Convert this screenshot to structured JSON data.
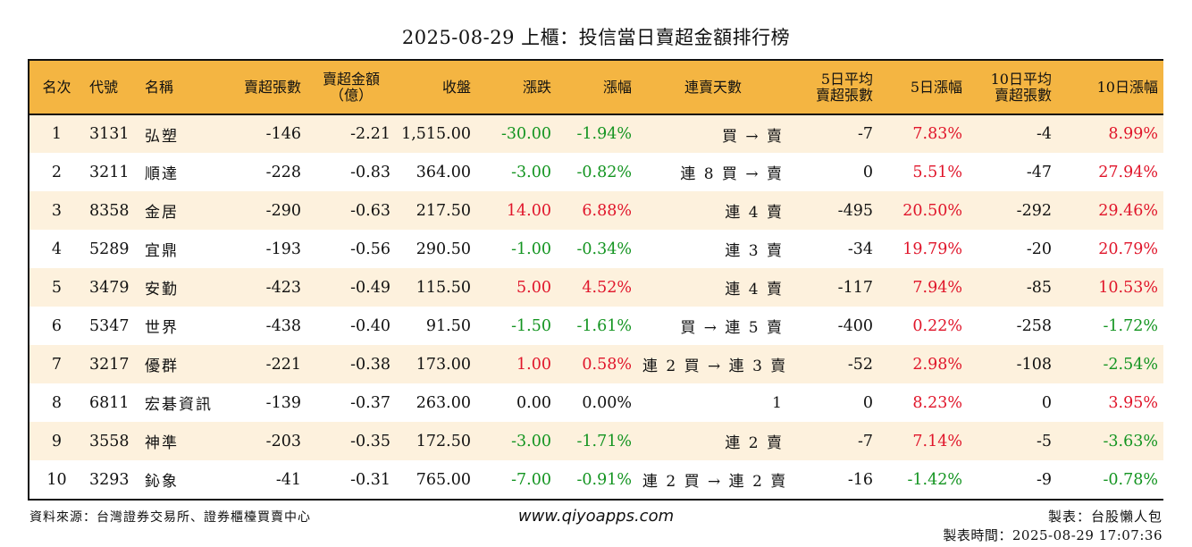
{
  "title": "2025-08-29 上櫃：投信當日賣超金額排行榜",
  "colors": {
    "header_bg": "#f4b542",
    "row_alt": "#fdf1dd",
    "up": "#e0152a",
    "down": "#139420"
  },
  "columns": {
    "rank": "名次",
    "code": "代號",
    "name": "名稱",
    "net_sell_lots": "賣超張數",
    "net_sell_amount_line1": "賣超金額",
    "net_sell_amount_line2": "（億）",
    "close": "收盤",
    "change": "漲跌",
    "change_pct": "漲幅",
    "streak": "連賣天數",
    "avg5_line1": "5日平均",
    "avg5_line2": "賣超張數",
    "pct5": "5日漲幅",
    "avg10_line1": "10日平均",
    "avg10_line2": "賣超張數",
    "pct10": "10日漲幅"
  },
  "rows": [
    {
      "rank": "1",
      "code": "3131",
      "name": "弘塑",
      "lots": "-146",
      "amount": "-2.21",
      "close": "1,515.00",
      "change": "-30.00",
      "change_pct": "-1.94%",
      "streak": "買 → 賣",
      "avg5": "-7",
      "pct5": "7.83%",
      "avg10": "-4",
      "pct10": "8.99%",
      "change_dir": "down",
      "pct5_dir": "up",
      "pct10_dir": "up"
    },
    {
      "rank": "2",
      "code": "3211",
      "name": "順達",
      "lots": "-228",
      "amount": "-0.83",
      "close": "364.00",
      "change": "-3.00",
      "change_pct": "-0.82%",
      "streak": "連 8 買 → 賣",
      "avg5": "0",
      "pct5": "5.51%",
      "avg10": "-47",
      "pct10": "27.94%",
      "change_dir": "down",
      "pct5_dir": "up",
      "pct10_dir": "up"
    },
    {
      "rank": "3",
      "code": "8358",
      "name": "金居",
      "lots": "-290",
      "amount": "-0.63",
      "close": "217.50",
      "change": "14.00",
      "change_pct": "6.88%",
      "streak": "連 4 賣",
      "avg5": "-495",
      "pct5": "20.50%",
      "avg10": "-292",
      "pct10": "29.46%",
      "change_dir": "up",
      "pct5_dir": "up",
      "pct10_dir": "up"
    },
    {
      "rank": "4",
      "code": "5289",
      "name": "宜鼎",
      "lots": "-193",
      "amount": "-0.56",
      "close": "290.50",
      "change": "-1.00",
      "change_pct": "-0.34%",
      "streak": "連 3 賣",
      "avg5": "-34",
      "pct5": "19.79%",
      "avg10": "-20",
      "pct10": "20.79%",
      "change_dir": "down",
      "pct5_dir": "up",
      "pct10_dir": "up"
    },
    {
      "rank": "5",
      "code": "3479",
      "name": "安勤",
      "lots": "-423",
      "amount": "-0.49",
      "close": "115.50",
      "change": "5.00",
      "change_pct": "4.52%",
      "streak": "連 4 賣",
      "avg5": "-117",
      "pct5": "7.94%",
      "avg10": "-85",
      "pct10": "10.53%",
      "change_dir": "up",
      "pct5_dir": "up",
      "pct10_dir": "up"
    },
    {
      "rank": "6",
      "code": "5347",
      "name": "世界",
      "lots": "-438",
      "amount": "-0.40",
      "close": "91.50",
      "change": "-1.50",
      "change_pct": "-1.61%",
      "streak": "買 → 連 5 賣",
      "avg5": "-400",
      "pct5": "0.22%",
      "avg10": "-258",
      "pct10": "-1.72%",
      "change_dir": "down",
      "pct5_dir": "up",
      "pct10_dir": "down"
    },
    {
      "rank": "7",
      "code": "3217",
      "name": "優群",
      "lots": "-221",
      "amount": "-0.38",
      "close": "173.00",
      "change": "1.00",
      "change_pct": "0.58%",
      "streak": "連 2 買 → 連 3 賣",
      "avg5": "-52",
      "pct5": "2.98%",
      "avg10": "-108",
      "pct10": "-2.54%",
      "change_dir": "up",
      "pct5_dir": "up",
      "pct10_dir": "down"
    },
    {
      "rank": "8",
      "code": "6811",
      "name": "宏碁資訊",
      "lots": "-139",
      "amount": "-0.37",
      "close": "263.00",
      "change": "0.00",
      "change_pct": "0.00%",
      "streak": "1",
      "avg5": "0",
      "pct5": "8.23%",
      "avg10": "0",
      "pct10": "3.95%",
      "change_dir": "flat",
      "pct5_dir": "up",
      "pct10_dir": "up"
    },
    {
      "rank": "9",
      "code": "3558",
      "name": "神準",
      "lots": "-203",
      "amount": "-0.35",
      "close": "172.50",
      "change": "-3.00",
      "change_pct": "-1.71%",
      "streak": "連 2 賣",
      "avg5": "-7",
      "pct5": "7.14%",
      "avg10": "-5",
      "pct10": "-3.63%",
      "change_dir": "down",
      "pct5_dir": "up",
      "pct10_dir": "down"
    },
    {
      "rank": "10",
      "code": "3293",
      "name": "鈊象",
      "lots": "-41",
      "amount": "-0.31",
      "close": "765.00",
      "change": "-7.00",
      "change_pct": "-0.91%",
      "streak": "連 2 買 → 連 2 賣",
      "avg5": "-16",
      "pct5": "-1.42%",
      "avg10": "-9",
      "pct10": "-0.78%",
      "change_dir": "down",
      "pct5_dir": "down",
      "pct10_dir": "down"
    }
  ],
  "footer": {
    "source": "資料來源：台灣證券交易所、證券櫃檯買賣中心",
    "site": "www.qiyoapps.com",
    "author": "製表：台股懶人包",
    "time": "製表時間：2025-08-29 17:07:36"
  }
}
